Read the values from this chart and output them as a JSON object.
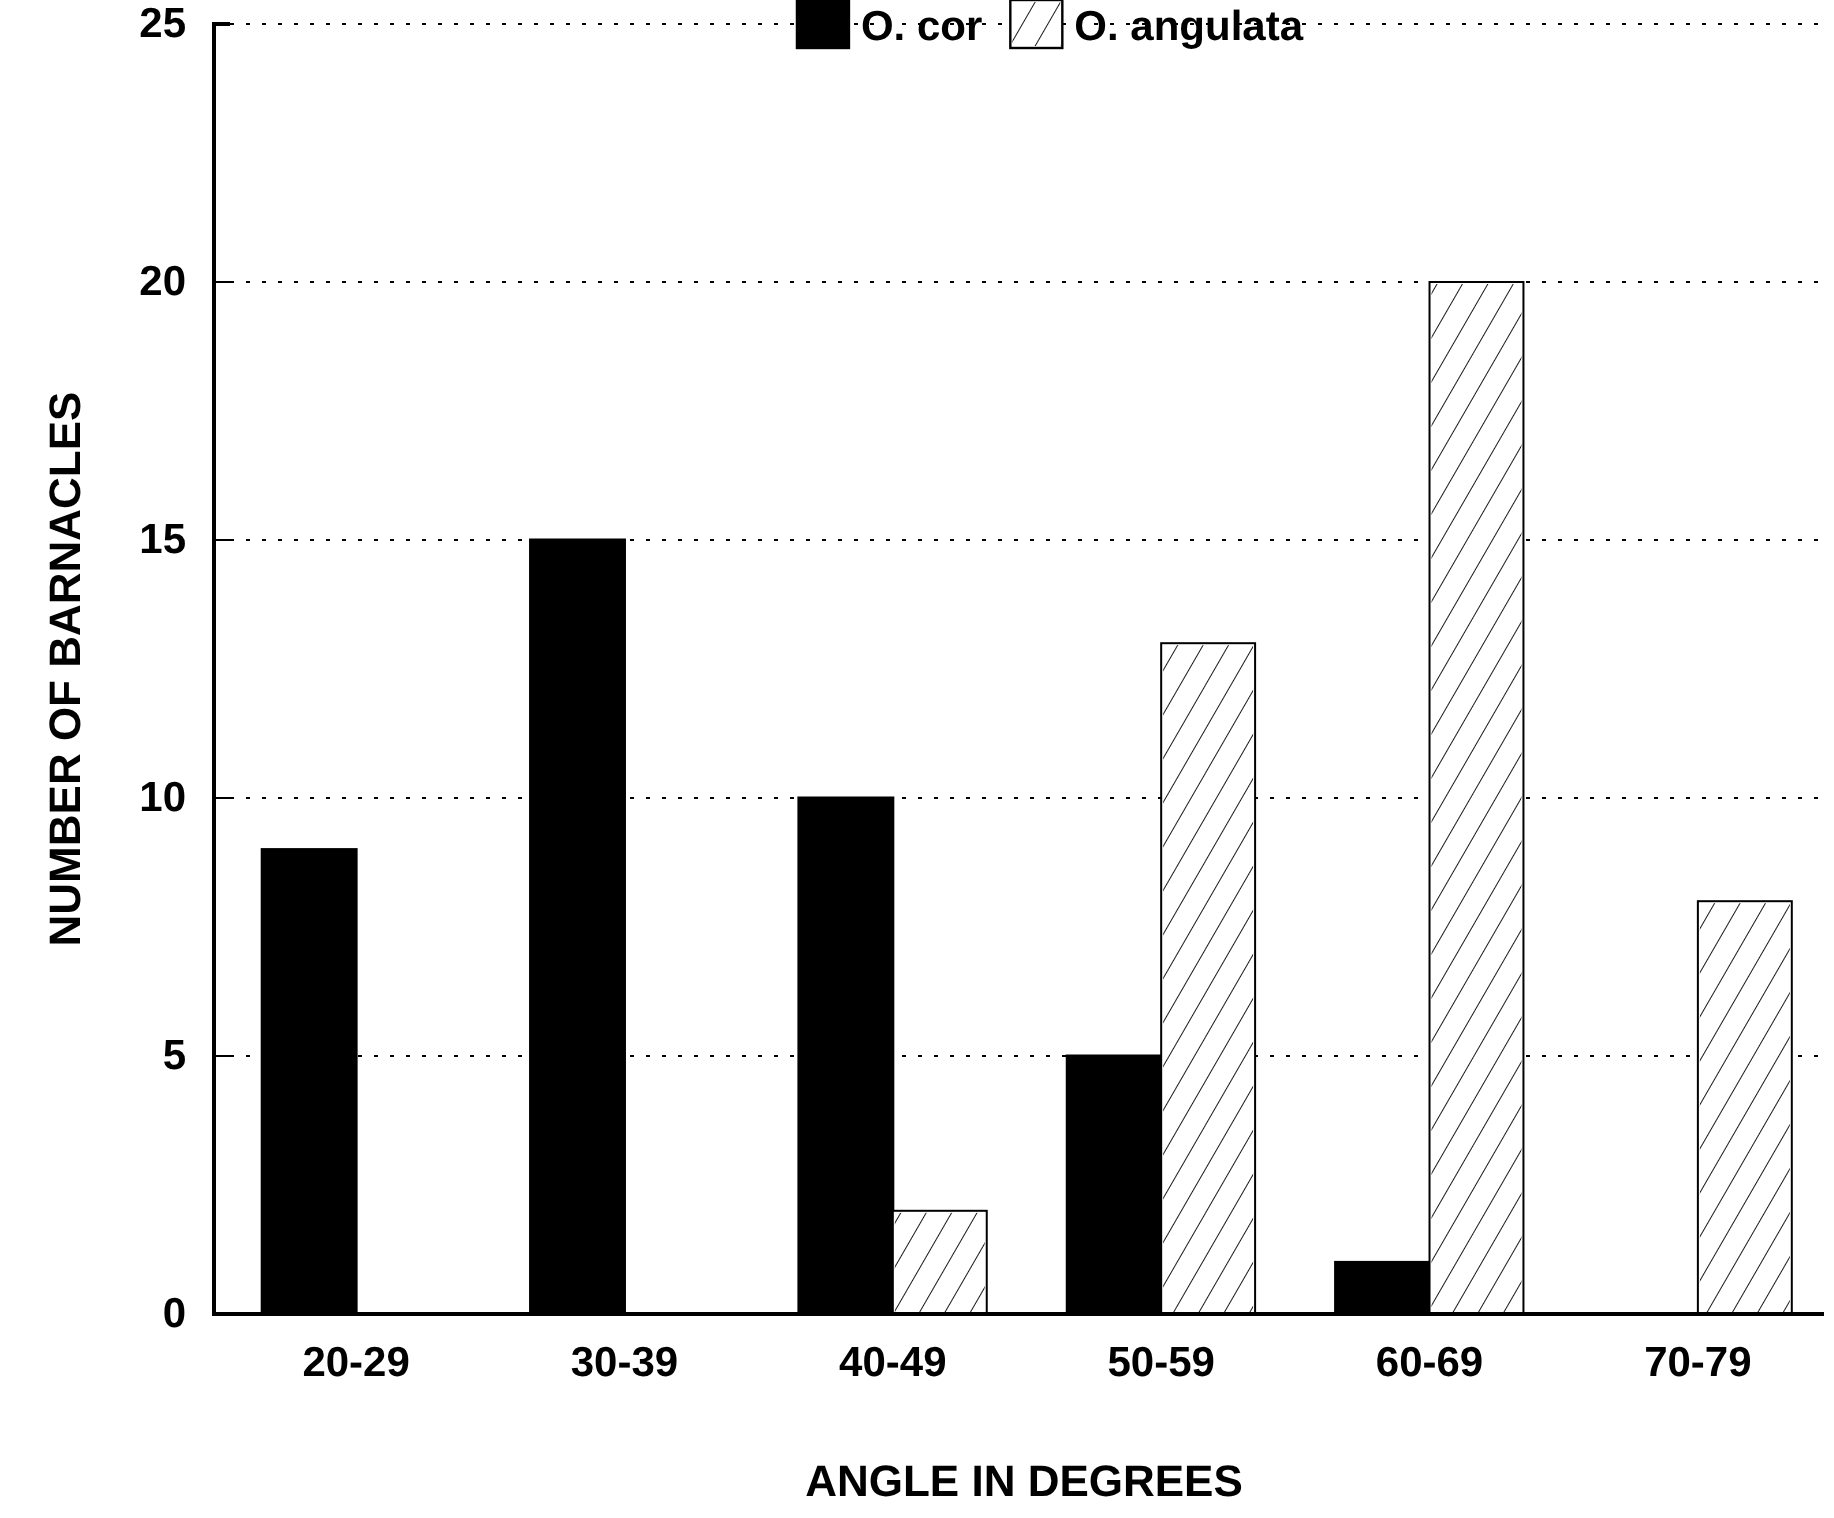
{
  "chart_data": {
    "type": "bar",
    "xlabel": "ANGLE IN DEGREES",
    "ylabel": "NUMBER OF BARNACLES",
    "categories": [
      "20-29",
      "30-39",
      "40-49",
      "50-59",
      "60-69",
      "70-79"
    ],
    "series": [
      {
        "name": "O. cor",
        "color": "#000000",
        "values": [
          9,
          15,
          10,
          5,
          1,
          null
        ]
      },
      {
        "name": "O. angulata",
        "color": "#ffffff",
        "values": [
          null,
          null,
          2,
          13,
          20,
          8
        ]
      }
    ],
    "ylim": [
      0,
      25
    ],
    "yticks": [
      0,
      5,
      10,
      15,
      20,
      25
    ],
    "grid": "y",
    "legend": "top"
  }
}
